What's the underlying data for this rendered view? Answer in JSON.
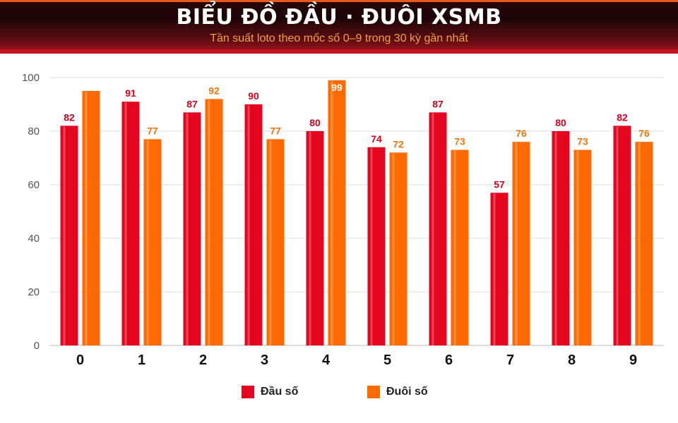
{
  "header": {
    "title": "BIỂU ĐỒ ĐẦU · ĐUÔI XSMB",
    "subtitle": "Tần suất loto theo mốc số 0–9 trong 30 kỳ gần nhất"
  },
  "legend": {
    "dau_label": "Đầu số",
    "duoi_label": "Đuôi số"
  },
  "colors": {
    "dau": "#e3061e",
    "duoi": "#ff6a00",
    "dau_label": "#d9001b",
    "duoi_label": "#f07410",
    "header_accent": "#f2a23a",
    "grid": "#dddddd"
  },
  "chart_data": {
    "type": "bar",
    "categories": [
      "0",
      "1",
      "2",
      "3",
      "4",
      "5",
      "6",
      "7",
      "8",
      "9"
    ],
    "series": [
      {
        "name": "Đầu số",
        "values": [
          82,
          91,
          87,
          90,
          80,
          74,
          87,
          57,
          80,
          82
        ],
        "labels": [
          "82",
          "91",
          "87",
          "90",
          "80",
          "74",
          "87",
          "57",
          "80",
          "82"
        ]
      },
      {
        "name": "Đuôi số",
        "values": [
          95,
          77,
          92,
          77,
          99,
          72,
          73,
          76,
          73,
          76
        ],
        "labels": [
          "",
          "77",
          "92",
          "77",
          "99",
          "72",
          "73",
          "76",
          "73",
          "76"
        ]
      }
    ],
    "yticks": [
      0,
      20,
      40,
      60,
      80,
      100
    ],
    "ylim": [
      0,
      100
    ],
    "grid": true,
    "legend_position": "bottom"
  }
}
